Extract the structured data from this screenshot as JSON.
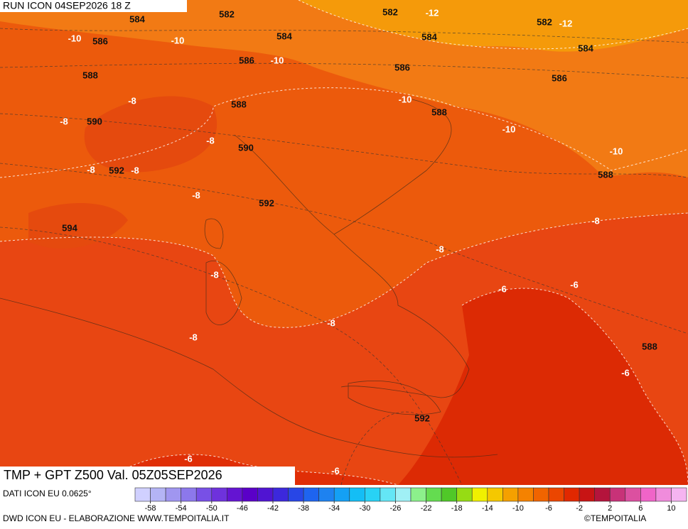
{
  "map": {
    "header": "RUN ICON 04SEP2026 18 Z",
    "title": "TMP + GPT Z500 Val. 05Z05SEP2026",
    "geopotential_labels": [
      584,
      582,
      582,
      582,
      586,
      584,
      584,
      584,
      588,
      586,
      586,
      586,
      590,
      588,
      588,
      592,
      590,
      588,
      592,
      594,
      588,
      592
    ],
    "temperature_labels": [
      -10,
      -10,
      -12,
      -12,
      -10,
      -8,
      -8,
      -10,
      -10,
      -10,
      -8,
      -8,
      -8,
      -8,
      -8,
      -8,
      -6,
      -6,
      -8,
      -8,
      -8,
      -6,
      -6,
      -6
    ]
  },
  "legend": {
    "source": "DATI ICON EU 0.0625°",
    "range": [
      -60,
      12
    ],
    "ticks": [
      -58,
      -54,
      -50,
      -46,
      -42,
      -38,
      -34,
      -30,
      -26,
      -22,
      -18,
      -14,
      -10,
      -6,
      -2,
      2,
      6,
      10
    ],
    "colors": [
      "#d0d0ff",
      "#b4b4f5",
      "#a096f0",
      "#8c78eb",
      "#7850e6",
      "#6e32dc",
      "#6414d2",
      "#5a00c8",
      "#5014d2",
      "#3c28dc",
      "#2846e6",
      "#1e64f0",
      "#1e82f0",
      "#14a0f5",
      "#14bef5",
      "#28d2f5",
      "#64e6f5",
      "#a0f0f5",
      "#8cf08c",
      "#64dc50",
      "#50c828",
      "#96dc14",
      "#f0f000",
      "#f5c800",
      "#f5a000",
      "#f58200",
      "#f06400",
      "#eb4600",
      "#e12800",
      "#c81414",
      "#b4143c",
      "#c83278",
      "#dc50a0",
      "#f064c8",
      "#f08cdc",
      "#f5b4f0"
    ]
  },
  "footer": {
    "credit": "DWD ICON EU - ELABORAZIONE WWW.TEMPOITALIA.IT",
    "copyright": "©TEMPOITALIA"
  }
}
